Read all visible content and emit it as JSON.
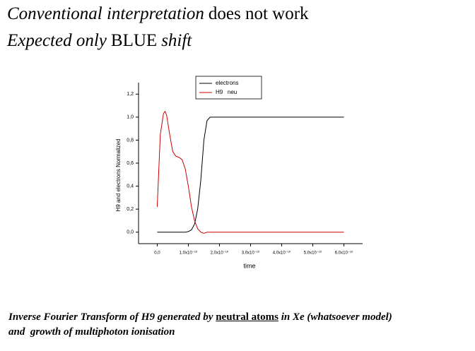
{
  "header": {
    "line1": [
      {
        "text": "Conventional interpretation",
        "style": "italic"
      },
      {
        "text": "does not work",
        "style": "normal"
      }
    ],
    "line2": [
      {
        "text": "Expected only",
        "style": "italic"
      },
      {
        "text": "BLUE",
        "style": "normal"
      },
      {
        "text": "shift",
        "style": "italic"
      }
    ]
  },
  "chart_data": {
    "type": "line",
    "xlabel": "time",
    "ylabel": "H9 and electrons Normalized",
    "x": [
      0,
      1e-11,
      2e-11,
      2.5e-11,
      3e-11,
      4e-11,
      5e-11,
      6e-11,
      7e-11,
      8e-11,
      9e-11,
      1e-10,
      1.1e-10,
      1.2e-10,
      1.3e-10,
      1.4e-10,
      1.5e-10,
      1.6e-10,
      1.7e-10,
      2e-10,
      3e-10,
      4e-10,
      5e-10,
      6e-10
    ],
    "series": [
      {
        "name": "electrons",
        "color": "#000000",
        "values": [
          0,
          0,
          0,
          0,
          0,
          0,
          0,
          0,
          0,
          0,
          0,
          0.005,
          0.02,
          0.07,
          0.2,
          0.45,
          0.8,
          0.97,
          1.0,
          1,
          1,
          1,
          1,
          1
        ]
      },
      {
        "name": "H9   neu",
        "color": "#cc0000",
        "values": [
          0.22,
          0.85,
          1.03,
          1.05,
          1.02,
          0.85,
          0.7,
          0.66,
          0.65,
          0.63,
          0.55,
          0.4,
          0.22,
          0.1,
          0.03,
          0,
          -0.01,
          0,
          0,
          0,
          0,
          0,
          0,
          0
        ]
      }
    ],
    "xlim": [
      -6e-11,
      6.6e-10
    ],
    "ylim": [
      -0.1,
      1.3
    ],
    "xticks": [
      {
        "value": 0,
        "label": "0,0"
      },
      {
        "value": 1e-10,
        "label": "1,0x10⁻¹⁰"
      },
      {
        "value": 2e-10,
        "label": "2,0x10⁻¹⁰"
      },
      {
        "value": 3e-10,
        "label": "3,0x10⁻¹⁰"
      },
      {
        "value": 4e-10,
        "label": "4,0x10⁻¹⁰"
      },
      {
        "value": 5e-10,
        "label": "5,0x10⁻¹⁰"
      },
      {
        "value": 6e-10,
        "label": "6,0x10⁻¹⁰"
      }
    ],
    "yticks": [
      {
        "value": 0,
        "label": "0,0"
      },
      {
        "value": 0.2,
        "label": "0,2"
      },
      {
        "value": 0.4,
        "label": "0,4"
      },
      {
        "value": 0.6,
        "label": "0,6"
      },
      {
        "value": 0.8,
        "label": "0,8"
      },
      {
        "value": 1.0,
        "label": "1,0"
      },
      {
        "value": 1.2,
        "label": "1,2"
      }
    ],
    "legend": "top"
  },
  "footer": {
    "line1": [
      {
        "text": "Inverse Fourier Transform of H9 generated by ",
        "style": "bi"
      },
      {
        "text": "neutral atoms",
        "style": "bu"
      },
      {
        "text": " in Xe (whatsoever model)",
        "style": "bi"
      }
    ],
    "line2": [
      {
        "text": "and  growth of multiphoton ionisation",
        "style": "bi"
      }
    ]
  }
}
